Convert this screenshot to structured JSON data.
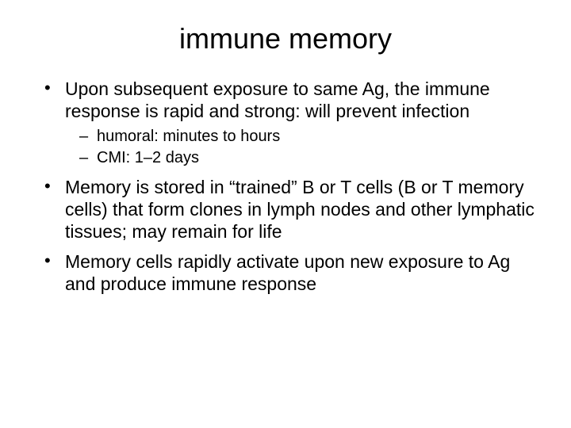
{
  "slide": {
    "background_color": "#ffffff",
    "text_color": "#000000",
    "font_family": "Arial",
    "title": {
      "text": "immune memory",
      "fontsize": 36,
      "align": "center"
    },
    "bullets": [
      {
        "text": "Upon subsequent exposure to same Ag, the immune response is rapid and strong: will prevent infection",
        "fontsize": 23,
        "sub": [
          {
            "text": "humoral: minutes to hours",
            "fontsize": 20
          },
          {
            "text": "CMI: 1–2 days",
            "fontsize": 20
          }
        ]
      },
      {
        "text": "Memory is stored in “trained” B or T cells (B or T memory cells) that form clones in lymph nodes and other lymphatic tissues; may remain for life",
        "fontsize": 23
      },
      {
        "text": "Memory cells rapidly activate upon new exposure to Ag and produce immune response",
        "fontsize": 23
      }
    ]
  }
}
